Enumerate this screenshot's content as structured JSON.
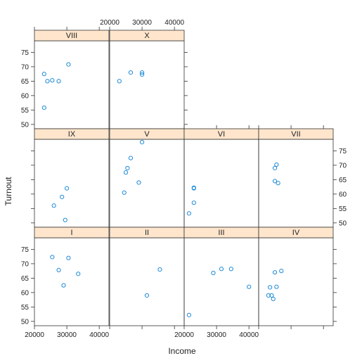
{
  "chart_data": {
    "type": "scatter",
    "layout": "conditioned-panels",
    "xlabel": "Income",
    "ylabel": "Turnout",
    "xlim": [
      20000,
      43000
    ],
    "ylim": [
      48.5,
      79
    ],
    "x_ticks": [
      20000,
      30000,
      40000
    ],
    "y_ticks": [
      50,
      55,
      60,
      65,
      70,
      75
    ],
    "strip_color": "#ffe5cc",
    "point_color": "#1f8bd6",
    "panels": [
      {
        "label": "VIII",
        "row": 0,
        "col": 0,
        "points": [
          {
            "x": 23000,
            "y": 67.5
          },
          {
            "x": 24000,
            "y": 65
          },
          {
            "x": 25500,
            "y": 65.3
          },
          {
            "x": 27500,
            "y": 65
          },
          {
            "x": 30500,
            "y": 70.8
          },
          {
            "x": 23000,
            "y": 55.8
          }
        ]
      },
      {
        "label": "X",
        "row": 0,
        "col": 1,
        "points": [
          {
            "x": 23000,
            "y": 65
          },
          {
            "x": 26500,
            "y": 68
          },
          {
            "x": 30000,
            "y": 68
          },
          {
            "x": 30000,
            "y": 67.3
          }
        ]
      },
      {
        "label": "IX",
        "row": 1,
        "col": 0,
        "points": [
          {
            "x": 26000,
            "y": 56
          },
          {
            "x": 28500,
            "y": 59
          },
          {
            "x": 30000,
            "y": 62
          },
          {
            "x": 29500,
            "y": 51
          }
        ]
      },
      {
        "label": "V",
        "row": 1,
        "col": 1,
        "points": [
          {
            "x": 24500,
            "y": 60.5
          },
          {
            "x": 25000,
            "y": 67.5
          },
          {
            "x": 25500,
            "y": 69
          },
          {
            "x": 26500,
            "y": 72.5
          },
          {
            "x": 29000,
            "y": 64
          },
          {
            "x": 30000,
            "y": 78
          }
        ]
      },
      {
        "label": "VI",
        "row": 1,
        "col": 2,
        "points": [
          {
            "x": 21500,
            "y": 53.3
          },
          {
            "x": 23000,
            "y": 62
          },
          {
            "x": 23000,
            "y": 62.2
          },
          {
            "x": 23000,
            "y": 57
          }
        ]
      },
      {
        "label": "VII",
        "row": 1,
        "col": 3,
        "points": [
          {
            "x": 25000,
            "y": 69
          },
          {
            "x": 25500,
            "y": 70.2
          },
          {
            "x": 25000,
            "y": 64.5
          },
          {
            "x": 26000,
            "y": 63.8
          }
        ]
      },
      {
        "label": "I",
        "row": 2,
        "col": 0,
        "points": [
          {
            "x": 25500,
            "y": 72.3
          },
          {
            "x": 27500,
            "y": 67.8
          },
          {
            "x": 29000,
            "y": 62.5
          },
          {
            "x": 30500,
            "y": 72
          },
          {
            "x": 33500,
            "y": 66.5
          }
        ]
      },
      {
        "label": "II",
        "row": 2,
        "col": 1,
        "points": [
          {
            "x": 31500,
            "y": 59
          },
          {
            "x": 35500,
            "y": 68
          }
        ]
      },
      {
        "label": "III",
        "row": 2,
        "col": 2,
        "points": [
          {
            "x": 21500,
            "y": 52.2
          },
          {
            "x": 29000,
            "y": 66.8
          },
          {
            "x": 31500,
            "y": 68.2
          },
          {
            "x": 34500,
            "y": 68.2
          },
          {
            "x": 40000,
            "y": 62
          }
        ]
      },
      {
        "label": "IV",
        "row": 2,
        "col": 3,
        "points": [
          {
            "x": 23000,
            "y": 59
          },
          {
            "x": 23500,
            "y": 61.8
          },
          {
            "x": 24000,
            "y": 59
          },
          {
            "x": 24500,
            "y": 57.8
          },
          {
            "x": 25000,
            "y": 67
          },
          {
            "x": 25500,
            "y": 62
          },
          {
            "x": 27000,
            "y": 67.5
          }
        ]
      }
    ]
  }
}
